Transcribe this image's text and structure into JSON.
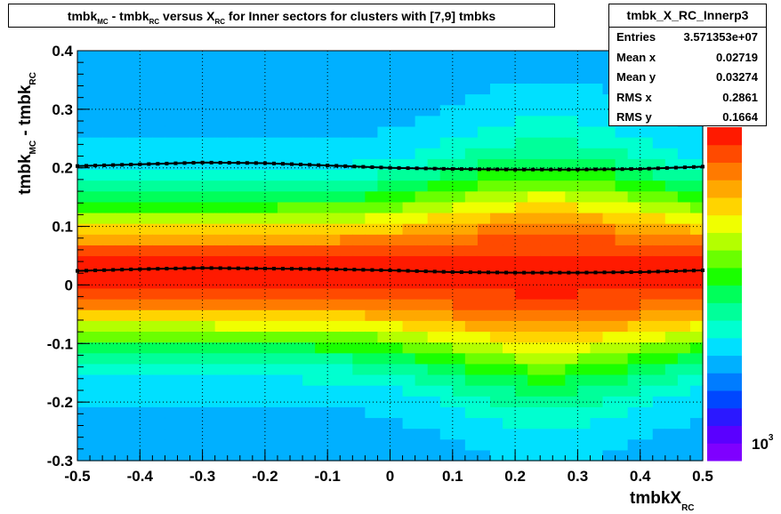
{
  "title": {
    "parts": [
      "tmbk",
      "MC",
      " - tmbk",
      "RC",
      " versus X",
      "RC",
      " for Inner sectors for clusters with [7,9] tmbks"
    ]
  },
  "stats": {
    "name": "tmbk_X_RC_Innerp3",
    "rows": [
      {
        "label": "Entries",
        "value": "3.571353e+07"
      },
      {
        "label": "Mean x",
        "value": "0.02719"
      },
      {
        "label": "Mean y",
        "value": "0.03274"
      },
      {
        "label": "RMS x",
        "value": "0.2861"
      },
      {
        "label": "RMS y",
        "value": "0.1664"
      }
    ]
  },
  "colors": {
    "palette": [
      "#7f00ff",
      "#5a00ff",
      "#2b18ff",
      "#0047ff",
      "#007cff",
      "#00b0ff",
      "#00e0ff",
      "#00ffd0",
      "#00ff9a",
      "#00ff5a",
      "#1aff00",
      "#6aff00",
      "#b4ff00",
      "#f0ff00",
      "#ffd400",
      "#ffa800",
      "#ff7a00",
      "#ff4a00",
      "#ff1a00"
    ],
    "profile_line": "#000000"
  },
  "chart_data": {
    "type": "heatmap",
    "title": "tmbk_MC - tmbk_RC versus X_RC for Inner sectors for clusters with [7,9] tmbks",
    "xlabel": "tmbkX_RC",
    "ylabel": "tmbk_MC - tmbk_RC",
    "xlim": [
      -0.5,
      0.5
    ],
    "ylim": [
      -0.3,
      0.4
    ],
    "x_ticks": [
      "-0.5",
      "-0.4",
      "-0.3",
      "-0.2",
      "-0.1",
      "0",
      "0.1",
      "0.2",
      "0.3",
      "0.4",
      "0.5"
    ],
    "y_ticks": [
      "-0.3",
      "-0.2",
      "-0.1",
      "0",
      "0.1",
      "0.2",
      "0.3",
      "0.4"
    ],
    "z_scale": "log",
    "z_tick_label": "10^3",
    "grid": true,
    "profiles": [
      {
        "name": "mean",
        "x": [
          -0.5,
          -0.4,
          -0.3,
          -0.2,
          -0.1,
          0,
          0.1,
          0.2,
          0.3,
          0.4,
          0.5
        ],
        "y": [
          0.024,
          0.027,
          0.029,
          0.028,
          0.027,
          0.025,
          0.022,
          0.021,
          0.021,
          0.022,
          0.025
        ]
      },
      {
        "name": "upper",
        "x": [
          -0.5,
          -0.4,
          -0.3,
          -0.2,
          -0.1,
          0,
          0.1,
          0.2,
          0.3,
          0.4,
          0.5
        ],
        "y": [
          0.203,
          0.206,
          0.209,
          0.208,
          0.204,
          0.2,
          0.198,
          0.197,
          0.197,
          0.198,
          0.202
        ]
      }
    ]
  }
}
